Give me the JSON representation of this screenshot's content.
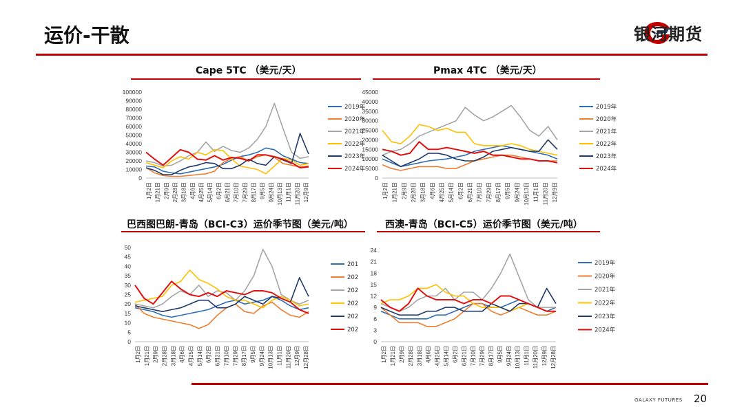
{
  "page": {
    "title": "运价-干散",
    "company": "银河期货",
    "footer_brand": "GALAXY FUTURES",
    "page_number": "20"
  },
  "colors": {
    "accent": "#c00000"
  },
  "series_colors": [
    "#2e6db4",
    "#ed7d31",
    "#a5a5a5",
    "#ffc000",
    "#1f3a68",
    "#e01010"
  ],
  "chart_data": [
    {
      "type": "line",
      "title": "Cape 5TC （美元/天）",
      "ylim": [
        0,
        100000
      ],
      "yticks": [
        "100000",
        "90000",
        "80000",
        "70000",
        "60000",
        "50000",
        "40000",
        "30000",
        "20000",
        "10000",
        "0"
      ],
      "xticks": [
        "1月2日",
        "1月21日",
        "2月9日",
        "2月28日",
        "3月18日",
        "4月6日",
        "4月25日",
        "5月14日",
        "6月2日",
        "6月21日",
        "7月10日",
        "7月29日",
        "8月17日",
        "9月5日",
        "9月24日",
        "10月13日",
        "11月1日",
        "11月20日",
        "12月9日"
      ],
      "legend": [
        "2019年",
        "2020年",
        "2021年",
        "2022年",
        "2023年",
        "2024年"
      ],
      "series": [
        {
          "name": "2019年",
          "values": [
            14000,
            13000,
            8000,
            6000,
            5000,
            7000,
            9000,
            11000,
            13000,
            16000,
            21000,
            25000,
            27000,
            30000,
            35000,
            33000,
            26000,
            22000,
            18000,
            17000
          ]
        },
        {
          "name": "2020年",
          "values": [
            12000,
            6000,
            3000,
            2000,
            2000,
            3000,
            4000,
            5000,
            8000,
            18000,
            23000,
            25000,
            20000,
            25000,
            27000,
            24000,
            17000,
            15000,
            13000,
            14000
          ]
        },
        {
          "name": "2021年",
          "values": [
            20000,
            18000,
            14000,
            15000,
            20000,
            26000,
            30000,
            42000,
            31000,
            37000,
            32000,
            30000,
            35000,
            45000,
            60000,
            87000,
            58000,
            30000,
            23000,
            25000
          ]
        },
        {
          "name": "2022年",
          "values": [
            18000,
            15000,
            12000,
            20000,
            25000,
            22000,
            30000,
            27000,
            33000,
            32000,
            22000,
            14000,
            12000,
            10000,
            5000,
            14000,
            23000,
            21000,
            15000,
            17000
          ]
        },
        {
          "name": "2023年",
          "values": [
            12000,
            9000,
            4000,
            4000,
            9000,
            13000,
            15000,
            18000,
            17000,
            11000,
            11000,
            15000,
            22000,
            17000,
            15000,
            25000,
            21000,
            17000,
            52000,
            28000
          ]
        },
        {
          "name": "2024年",
          "values": [
            30000,
            22000,
            15000,
            24000,
            33000,
            30000,
            22000,
            21000,
            26000,
            21000,
            24000,
            23000,
            20000,
            27000,
            27000,
            25000,
            22000,
            18000,
            12000,
            13000
          ]
        }
      ]
    },
    {
      "type": "line",
      "title": "Pmax 4TC （美元/天）",
      "ylim": [
        0,
        45000
      ],
      "yticks": [
        "45000",
        "40000",
        "35000",
        "30000",
        "25000",
        "20000",
        "15000",
        "10000",
        "5000",
        "0"
      ],
      "xticks": [
        "1月2日",
        "1月21日",
        "2月9日",
        "2月28日",
        "3月18日",
        "4月6日",
        "4月25日",
        "5月14日",
        "6月2日",
        "6月21日",
        "7月10日",
        "7月29日",
        "8月17日",
        "9月5日",
        "9月24日",
        "10月13日",
        "11月1日",
        "11月20日",
        "12月9日"
      ],
      "legend": [
        "2019年",
        "2020年",
        "2021年",
        "2022年",
        "2023年",
        "2024年"
      ],
      "series": [
        {
          "name": "2019年",
          "values": [
            10000,
            8000,
            6000,
            7000,
            8000,
            9000,
            9500,
            10000,
            11000,
            12000,
            14000,
            15000,
            16000,
            17000,
            16000,
            15000,
            14000,
            13000,
            12000,
            10000
          ]
        },
        {
          "name": "2020年",
          "values": [
            7000,
            5000,
            4000,
            5000,
            6000,
            6000,
            6000,
            5000,
            5000,
            7000,
            9000,
            10000,
            11000,
            12000,
            12000,
            11000,
            10000,
            9000,
            9000,
            9000
          ]
        },
        {
          "name": "2021年",
          "values": [
            12000,
            14000,
            15000,
            18000,
            22000,
            24000,
            26000,
            28000,
            30000,
            37000,
            33000,
            30000,
            32000,
            35000,
            38000,
            32000,
            25000,
            22000,
            27000,
            20000
          ]
        },
        {
          "name": "2022年",
          "values": [
            25000,
            19000,
            18000,
            22000,
            28000,
            27000,
            25000,
            26000,
            24000,
            24000,
            18000,
            17000,
            17000,
            17000,
            18000,
            17000,
            15000,
            14000,
            13000,
            12000
          ]
        },
        {
          "name": "2023年",
          "values": [
            12000,
            9000,
            6000,
            8000,
            10000,
            13000,
            13000,
            12000,
            10000,
            9000,
            9000,
            11000,
            14000,
            15000,
            16000,
            15000,
            14000,
            14000,
            20000,
            15000
          ]
        },
        {
          "name": "2024年",
          "values": [
            15000,
            14000,
            12000,
            13000,
            19000,
            15000,
            15000,
            16000,
            15000,
            14000,
            13000,
            14000,
            12000,
            12000,
            11000,
            10000,
            10000,
            9000,
            9000,
            8000
          ]
        }
      ]
    },
    {
      "type": "line",
      "title": "巴西图巴朗-青岛（BCI-C3）运价季节图（美元/吨）",
      "ylim": [
        0,
        50
      ],
      "yticks": [
        "50",
        "45",
        "40",
        "35",
        "30",
        "25",
        "20",
        "15",
        "10",
        "5",
        "0"
      ],
      "xticks": [
        "1月2日",
        "1月21日",
        "2月9日",
        "2月28日",
        "3月18日",
        "4月6日",
        "4月25日",
        "5月14日",
        "6月2日",
        "6月21日",
        "7月10日",
        "7月29日",
        "8月17日",
        "9月5日",
        "9月24日",
        "10月13日",
        "11月1日",
        "11月20日",
        "12月9日",
        "12月28日"
      ],
      "legend": [
        "201",
        "202",
        "202",
        "202",
        "202",
        "202"
      ],
      "series": [
        {
          "name": "201",
          "values": [
            18,
            17,
            16,
            14,
            13,
            14,
            15,
            16,
            17,
            19,
            21,
            22,
            20,
            21,
            22,
            24,
            22,
            19,
            17,
            18
          ]
        },
        {
          "name": "202",
          "values": [
            20,
            15,
            13,
            12,
            11,
            10,
            9,
            7,
            9,
            14,
            18,
            20,
            16,
            15,
            19,
            21,
            17,
            14,
            13,
            16
          ]
        },
        {
          "name": "202",
          "values": [
            20,
            19,
            18,
            20,
            24,
            27,
            25,
            30,
            24,
            27,
            26,
            22,
            27,
            35,
            49,
            40,
            25,
            22,
            20,
            22
          ]
        },
        {
          "name": "202",
          "values": [
            21,
            22,
            23,
            24,
            30,
            32,
            38,
            33,
            31,
            28,
            24,
            22,
            22,
            20,
            18,
            22,
            24,
            22,
            19,
            20
          ]
        },
        {
          "name": "202",
          "values": [
            19,
            18,
            17,
            16,
            17,
            18,
            20,
            22,
            22,
            18,
            18,
            20,
            24,
            22,
            20,
            24,
            23,
            21,
            34,
            24
          ]
        },
        {
          "name": "202",
          "values": [
            30,
            23,
            20,
            26,
            32,
            28,
            25,
            24,
            26,
            24,
            27,
            26,
            25,
            27,
            27,
            26,
            23,
            21,
            17,
            15
          ]
        }
      ]
    },
    {
      "type": "line",
      "title": "西澳-青岛（BCI-C5）运价季节图（美元/吨）",
      "ylim": [
        0,
        24
      ],
      "yticks": [
        "24",
        "21",
        "18",
        "15",
        "12",
        "9",
        "6",
        "3",
        "0"
      ],
      "xticks": [
        "1月2日",
        "1月21日",
        "2月9日",
        "2月28日",
        "3月18日",
        "4月6日",
        "4月25日",
        "5月14日",
        "6月2日",
        "6月21日",
        "7月10日",
        "7月29日",
        "8月17日",
        "9月5日",
        "9月24日",
        "10月13日",
        "11月1日",
        "11月20日",
        "12月9日",
        "12月28日"
      ],
      "legend": [
        "2019年",
        "2020年",
        "2021年",
        "2022年",
        "2023年",
        "2024年"
      ],
      "series": [
        {
          "name": "2019年",
          "values": [
            8,
            7,
            6,
            6,
            6,
            6,
            7,
            7,
            8,
            9,
            10,
            10,
            9,
            9,
            10,
            11,
            10,
            9,
            8,
            9
          ]
        },
        {
          "name": "2020年",
          "values": [
            9,
            7,
            5,
            5,
            5,
            4,
            4,
            5,
            6,
            8,
            10,
            10,
            8,
            7,
            8,
            9,
            8,
            7,
            7,
            8
          ]
        },
        {
          "name": "2021年",
          "values": [
            10,
            9,
            8,
            9,
            11,
            12,
            12,
            14,
            11,
            13,
            13,
            11,
            14,
            18,
            23,
            17,
            11,
            9,
            9,
            9
          ]
        },
        {
          "name": "2022年",
          "values": [
            10,
            11,
            11,
            12,
            14,
            14,
            15,
            13,
            12,
            12,
            10,
            9,
            9,
            9,
            8,
            9,
            10,
            9,
            8,
            8
          ]
        },
        {
          "name": "2023年",
          "values": [
            9,
            8,
            7,
            7,
            7,
            8,
            8,
            9,
            9,
            8,
            8,
            8,
            10,
            9,
            8,
            10,
            10,
            9,
            14,
            10
          ]
        },
        {
          "name": "2024年",
          "values": [
            11,
            9,
            8,
            10,
            14,
            12,
            11,
            11,
            11,
            10,
            11,
            11,
            10,
            12,
            12,
            11,
            10,
            9,
            8,
            8
          ]
        }
      ]
    }
  ]
}
